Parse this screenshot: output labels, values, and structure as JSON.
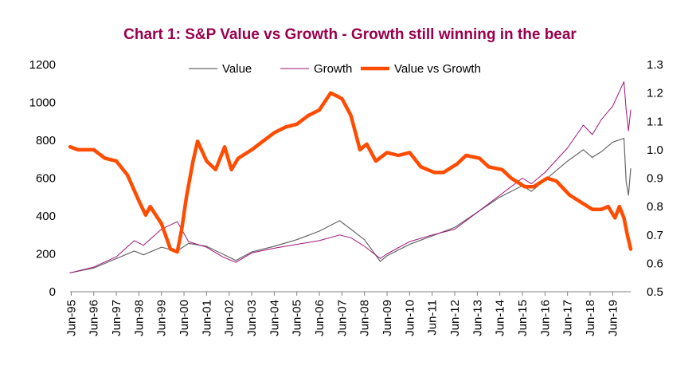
{
  "colors": {
    "title": "#99004c",
    "value": "#666666",
    "growth": "#a0157a",
    "ratio": "#ff4c00",
    "axis": "#808080"
  },
  "chart_data": {
    "type": "line",
    "title": "Chart 1: S&P Value vs Growth - Growth still winning in the bear",
    "x_labels": [
      "Jun-95",
      "Jun-96",
      "Jun-97",
      "Jun-98",
      "Jun-99",
      "Jun-00",
      "Jun-01",
      "Jun-02",
      "Jun-03",
      "Jun-04",
      "Jun-05",
      "Jun-06",
      "Jun-07",
      "Jun-08",
      "Jun-09",
      "Jun-10",
      "Jun-11",
      "Jun-12",
      "Jun-13",
      "Jun-14",
      "Jun-15",
      "Jun-16",
      "Jun-17",
      "Jun-18",
      "Jun-19"
    ],
    "x_range": [
      1995.45,
      2020.3
    ],
    "y_left": {
      "range": [
        0,
        1200
      ],
      "ticks": [
        "0",
        "200",
        "400",
        "600",
        "800",
        "1000",
        "1200"
      ]
    },
    "y_right": {
      "range": [
        0.5,
        1.3
      ],
      "ticks": [
        "0.5",
        "0.6",
        "0.7",
        "0.8",
        "0.9",
        "1.0",
        "1.1",
        "1.2",
        "1.3"
      ]
    },
    "grid": "none",
    "legend_position": "top",
    "series": [
      {
        "name": "Value",
        "axis": "left",
        "style": "thin",
        "x": [
          1995.45,
          1996.5,
          1997.5,
          1998.3,
          1998.7,
          1999.5,
          2000.2,
          2000.7,
          2001.5,
          2002.2,
          2002.8,
          2003.5,
          2004.5,
          2005.5,
          2006.5,
          2007.4,
          2007.9,
          2008.5,
          2009.2,
          2009.5,
          2010.5,
          2011.5,
          2012.5,
          2013.5,
          2014.5,
          2015.5,
          2015.9,
          2016.5,
          2017.5,
          2018.2,
          2018.6,
          2019.0,
          2019.5,
          2020.0,
          2020.1,
          2020.2,
          2020.3
        ],
        "y": [
          100,
          125,
          175,
          215,
          195,
          235,
          215,
          255,
          240,
          200,
          165,
          210,
          240,
          275,
          320,
          375,
          330,
          275,
          160,
          190,
          250,
          295,
          340,
          420,
          500,
          560,
          530,
          590,
          690,
          750,
          710,
          740,
          790,
          810,
          580,
          510,
          650
        ]
      },
      {
        "name": "Growth",
        "axis": "left",
        "style": "thin",
        "x": [
          1995.45,
          1996.5,
          1997.5,
          1998.3,
          1998.7,
          1999.5,
          2000.2,
          2000.7,
          2001.5,
          2002.2,
          2002.8,
          2003.5,
          2004.5,
          2005.5,
          2006.5,
          2007.4,
          2007.9,
          2008.5,
          2009.2,
          2009.5,
          2010.5,
          2011.5,
          2012.5,
          2013.5,
          2014.5,
          2015.5,
          2015.9,
          2016.5,
          2017.5,
          2018.2,
          2018.6,
          2019.0,
          2019.5,
          2020.0,
          2020.1,
          2020.2,
          2020.3
        ],
        "y": [
          100,
          130,
          185,
          270,
          245,
          330,
          370,
          265,
          235,
          185,
          155,
          205,
          230,
          250,
          270,
          300,
          285,
          240,
          175,
          200,
          265,
          300,
          330,
          420,
          510,
          600,
          570,
          630,
          760,
          880,
          830,
          910,
          980,
          1110,
          960,
          850,
          960
        ]
      },
      {
        "name": "Value vs Growth",
        "axis": "right",
        "style": "thick",
        "x": [
          1995.45,
          1995.8,
          1996.5,
          1997.0,
          1997.5,
          1998.0,
          1998.5,
          1998.8,
          1999.0,
          1999.5,
          1999.9,
          2000.2,
          2000.4,
          2000.6,
          2000.9,
          2001.1,
          2001.5,
          2001.9,
          2002.3,
          2002.6,
          2002.9,
          2003.5,
          2004.0,
          2004.5,
          2005.0,
          2005.5,
          2006.0,
          2006.5,
          2007.0,
          2007.5,
          2007.9,
          2008.3,
          2008.6,
          2009.0,
          2009.5,
          2010.0,
          2010.5,
          2011.0,
          2011.6,
          2012.0,
          2012.6,
          2013.0,
          2013.6,
          2014.0,
          2014.6,
          2015.0,
          2015.6,
          2016.0,
          2016.6,
          2017.0,
          2017.6,
          2018.0,
          2018.6,
          2019.0,
          2019.3,
          2019.6,
          2019.8,
          2020.0,
          2020.15,
          2020.3
        ],
        "y": [
          1.01,
          1.0,
          1.0,
          0.97,
          0.96,
          0.91,
          0.82,
          0.77,
          0.8,
          0.74,
          0.65,
          0.64,
          0.72,
          0.83,
          0.96,
          1.03,
          0.96,
          0.93,
          1.01,
          0.93,
          0.97,
          1.0,
          1.03,
          1.06,
          1.08,
          1.09,
          1.12,
          1.14,
          1.2,
          1.18,
          1.12,
          1.0,
          1.02,
          0.96,
          0.99,
          0.98,
          0.99,
          0.94,
          0.92,
          0.92,
          0.95,
          0.98,
          0.97,
          0.94,
          0.93,
          0.9,
          0.87,
          0.87,
          0.9,
          0.89,
          0.84,
          0.82,
          0.79,
          0.79,
          0.8,
          0.76,
          0.8,
          0.76,
          0.7,
          0.65
        ]
      }
    ]
  }
}
